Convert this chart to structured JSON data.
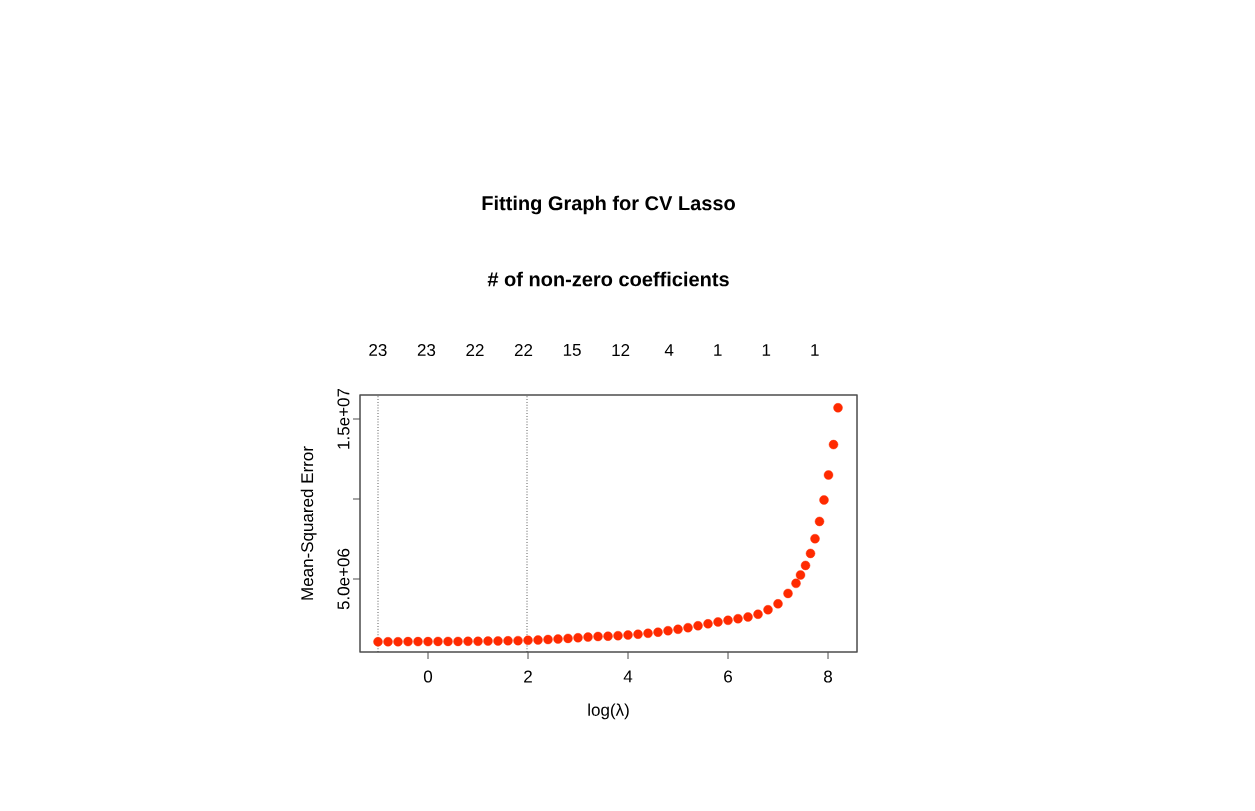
{
  "chart_data": {
    "type": "scatter",
    "title": "Fitting Graph for CV Lasso",
    "subtitle": "# of non-zero coefficients",
    "xlabel": "log(λ)",
    "ylabel": "Mean-Squared Error",
    "xlim": [
      -1.36,
      8.58
    ],
    "ylim": [
      440000,
      16500000
    ],
    "xticks": [
      0,
      2,
      4,
      6,
      8
    ],
    "yticks": [
      {
        "value": 5000000,
        "label": "5.0e+06"
      },
      {
        "value": 10000000,
        "label": null
      },
      {
        "value": 15000000,
        "label": "1.5e+07"
      }
    ],
    "annotations": [
      "23",
      "23",
      "22",
      "22",
      "15",
      "12",
      "4",
      "1",
      "1",
      "1"
    ],
    "ref_lines": [
      {
        "axis": "x",
        "value": -1.0,
        "color": "#000000",
        "line_style": "dotted"
      },
      {
        "axis": "x",
        "value": 1.98,
        "color": "#000000",
        "line_style": "dotted"
      }
    ],
    "series": [
      {
        "color": "#ff2a00",
        "x": [
          -1.0,
          -0.8,
          -0.6,
          -0.4,
          -0.2,
          0,
          0.2,
          0.4,
          0.6,
          0.8,
          1.0,
          1.2,
          1.4,
          1.6,
          1.8,
          2.0,
          2.2,
          2.4,
          2.6,
          2.8,
          3.0,
          3.2,
          3.4,
          3.6,
          3.8,
          4.0,
          4.2,
          4.4,
          4.6,
          4.8,
          5.0,
          5.2,
          5.4,
          5.6,
          5.8,
          6.0,
          6.2,
          6.4,
          6.6,
          6.8,
          7.0,
          7.2,
          7.36,
          7.45,
          7.55,
          7.65,
          7.74,
          7.83,
          7.92,
          8.01,
          8.11,
          8.2
        ],
        "values": [
          1080000,
          1080000,
          1080000,
          1090000,
          1090000,
          1090000,
          1100000,
          1100000,
          1100000,
          1110000,
          1110000,
          1120000,
          1130000,
          1140000,
          1150000,
          1170000,
          1190000,
          1220000,
          1250000,
          1290000,
          1330000,
          1370000,
          1410000,
          1430000,
          1460000,
          1500000,
          1550000,
          1610000,
          1680000,
          1770000,
          1860000,
          1960000,
          2080000,
          2200000,
          2320000,
          2420000,
          2520000,
          2630000,
          2800000,
          3080000,
          3450000,
          4100000,
          4730000,
          5250000,
          5850000,
          6600000,
          7520000,
          8600000,
          9940000,
          11500000,
          13400000,
          15700000
        ]
      }
    ]
  }
}
